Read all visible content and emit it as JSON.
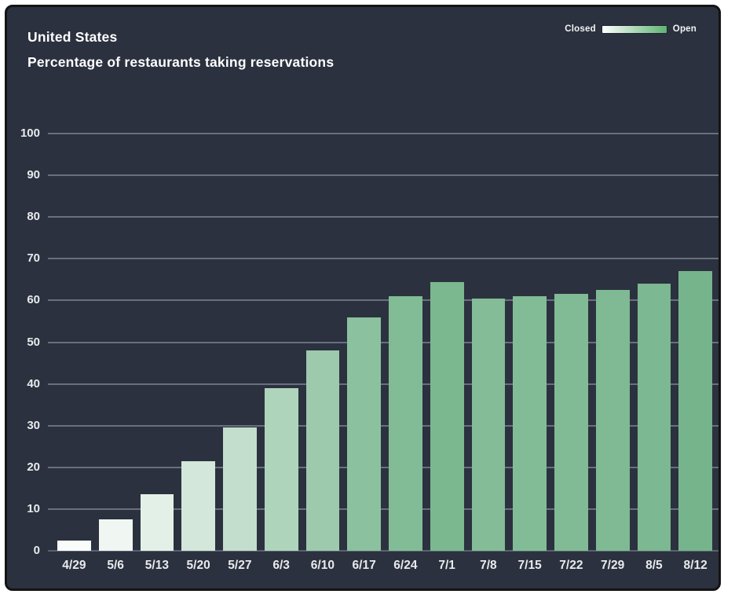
{
  "header": {
    "title": "United States",
    "subtitle": "Percentage of restaurants taking reservations"
  },
  "legend": {
    "closed_label": "Closed",
    "open_label": "Open",
    "gradient_start": "#ffffff",
    "gradient_end": "#5fb274"
  },
  "colors": {
    "card_background": "#2b313e",
    "card_border": "#141414",
    "gridline": "#68707f",
    "baseline": "#59616f",
    "axis_label": "#e8eaed",
    "title_text": "#ffffff",
    "bar_scale_min": "#ffffff",
    "bar_scale_max": "#76b58c"
  },
  "chart_data": {
    "type": "bar",
    "title": "United States",
    "subtitle": "Percentage of restaurants taking reservations",
    "xlabel": "",
    "ylabel": "",
    "categories": [
      "4/29",
      "5/6",
      "5/13",
      "5/20",
      "5/27",
      "6/3",
      "6/10",
      "6/17",
      "6/24",
      "7/1",
      "7/8",
      "7/15",
      "7/22",
      "7/29",
      "8/5",
      "8/12"
    ],
    "values": [
      2.5,
      7.5,
      13.5,
      21.5,
      29.5,
      39,
      48,
      56,
      61,
      64.5,
      60.5,
      61,
      61.5,
      62.5,
      64,
      67
    ],
    "ylim": [
      0,
      100
    ],
    "yticks": [
      0,
      10,
      20,
      30,
      40,
      50,
      60,
      70,
      80,
      90,
      100
    ],
    "grid": true,
    "legend_position": "top-right",
    "color_encoding": "value mapped Closed (white) to Open (green)"
  }
}
